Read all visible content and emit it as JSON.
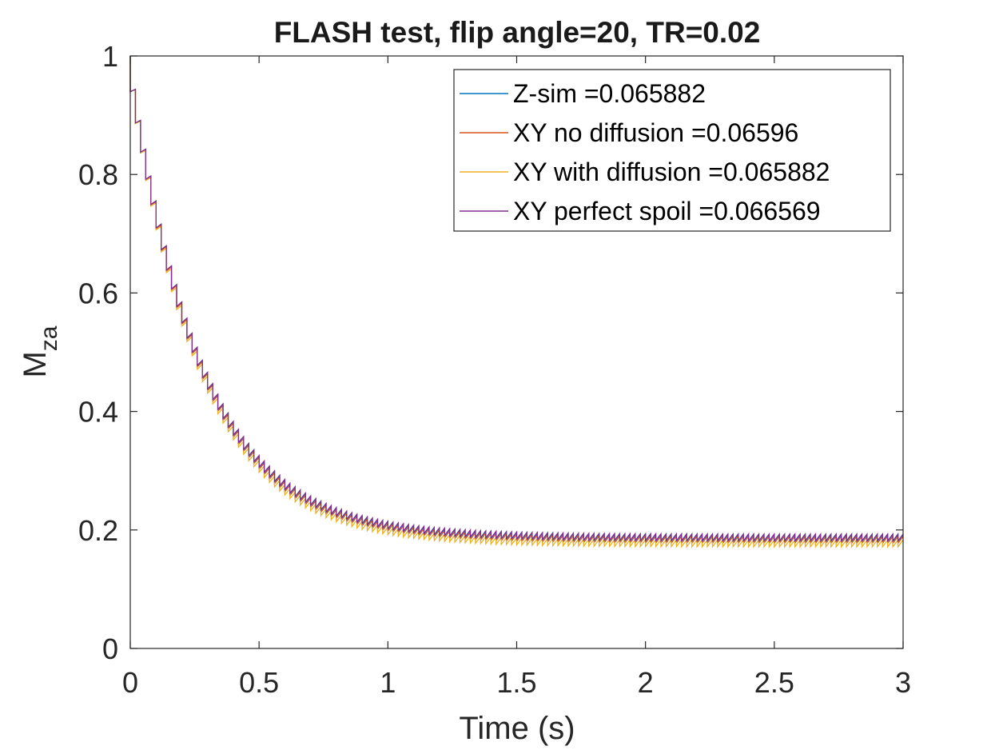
{
  "chart_data": {
    "type": "line",
    "title": "FLASH test, flip angle=20, TR=0.02",
    "xlabel": "Time (s)",
    "ylabel_main": "M",
    "ylabel_sub": "za",
    "xlim": [
      0,
      3
    ],
    "ylim": [
      0,
      1
    ],
    "xticks": [
      0,
      0.5,
      1,
      1.5,
      2,
      2.5,
      3
    ],
    "xtick_labels": [
      "0",
      "0.5",
      "1",
      "1.5",
      "2",
      "2.5",
      "3"
    ],
    "yticks": [
      0,
      0.2,
      0.4,
      0.6,
      0.8,
      1
    ],
    "ytick_labels": [
      "0",
      "0.2",
      "0.4",
      "0.6",
      "0.8",
      "1"
    ],
    "grid": false,
    "legend_position": "top-right",
    "sawtooth": {
      "period": 0.02,
      "initial": 1.0,
      "steady_pre_pulse": 0.192,
      "flip_angle_deg": 20
    },
    "series": [
      {
        "name": "Z-sim =0.065882",
        "color": "#0072bd",
        "offset": 0.0
      },
      {
        "name": "XY no diffusion =0.06596",
        "color": "#d95319",
        "offset": -0.003
      },
      {
        "name": "XY with diffusion =0.065882",
        "color": "#edb120",
        "offset": -0.009
      },
      {
        "name": "XY perfect spoil =0.066569",
        "color": "#7e2f8e",
        "offset": 0.001
      }
    ]
  }
}
